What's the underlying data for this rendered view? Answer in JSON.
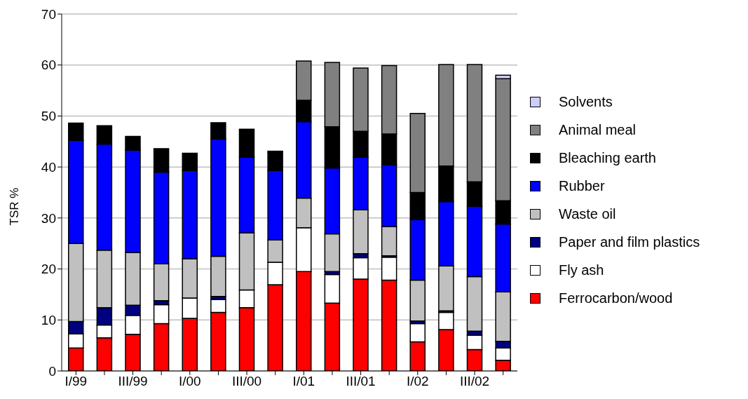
{
  "chart_data": {
    "type": "bar",
    "stacked": true,
    "ylabel": "TSR %",
    "categories": [
      "I/99",
      null,
      "III/99",
      null,
      "I/00",
      null,
      "III/00",
      null,
      "I/01",
      null,
      "III/01",
      null,
      "I/02",
      null,
      "III/02",
      null
    ],
    "series": [
      {
        "name": "Ferrocarbon/wood",
        "color": "#ff0000",
        "values": [
          4.5,
          6.5,
          7.2,
          9.3,
          10.3,
          11.5,
          12.4,
          16.9,
          19.5,
          13.3,
          18.0,
          17.8,
          5.7,
          8.1,
          4.2,
          2.1
        ]
      },
      {
        "name": "Fly ash",
        "color": "#ffffff",
        "values": [
          2.8,
          2.5,
          3.7,
          3.7,
          4.0,
          2.5,
          3.5,
          4.4,
          8.6,
          5.6,
          4.2,
          4.5,
          3.6,
          3.4,
          2.8,
          2.4
        ]
      },
      {
        "name": "Paper and film plastics",
        "color": "#000080",
        "values": [
          2.4,
          3.4,
          2.0,
          0.8,
          null,
          0.6,
          null,
          null,
          null,
          0.6,
          0.8,
          0.3,
          0.5,
          0.3,
          0.8,
          1.3
        ]
      },
      {
        "name": "Waste oil",
        "color": "#c0c0c0",
        "values": [
          15.3,
          11.3,
          10.3,
          7.2,
          7.7,
          7.9,
          11.2,
          4.4,
          5.8,
          7.4,
          8.6,
          5.7,
          8.0,
          8.8,
          10.7,
          9.7
        ]
      },
      {
        "name": "Rubber",
        "color": "#0000ff",
        "values": [
          20.2,
          20.8,
          20.1,
          18.0,
          17.3,
          23.0,
          14.8,
          13.6,
          15.0,
          12.9,
          10.3,
          12.1,
          11.9,
          12.6,
          13.8,
          13.3
        ]
      },
      {
        "name": "Bleaching earth",
        "color": "#000000",
        "values": [
          3.4,
          3.6,
          2.7,
          4.6,
          3.4,
          3.2,
          5.5,
          3.6,
          4.2,
          8.1,
          5.1,
          6.1,
          5.3,
          7.0,
          4.8,
          4.6
        ]
      },
      {
        "name": "Animal meal",
        "color": "#808080",
        "values": [
          null,
          null,
          null,
          null,
          null,
          null,
          null,
          0.2,
          7.7,
          12.6,
          12.4,
          13.4,
          15.5,
          19.9,
          23.0,
          23.9
        ]
      },
      {
        "name": "Solvents",
        "color": "#ccccff",
        "values": [
          null,
          null,
          null,
          null,
          null,
          null,
          null,
          null,
          null,
          null,
          null,
          null,
          null,
          null,
          null,
          0.7
        ]
      }
    ],
    "ylim": [
      0,
      70
    ],
    "yticks": [
      0,
      10,
      20,
      30,
      40,
      50,
      60,
      70
    ],
    "grid": "y",
    "legend": "right"
  }
}
